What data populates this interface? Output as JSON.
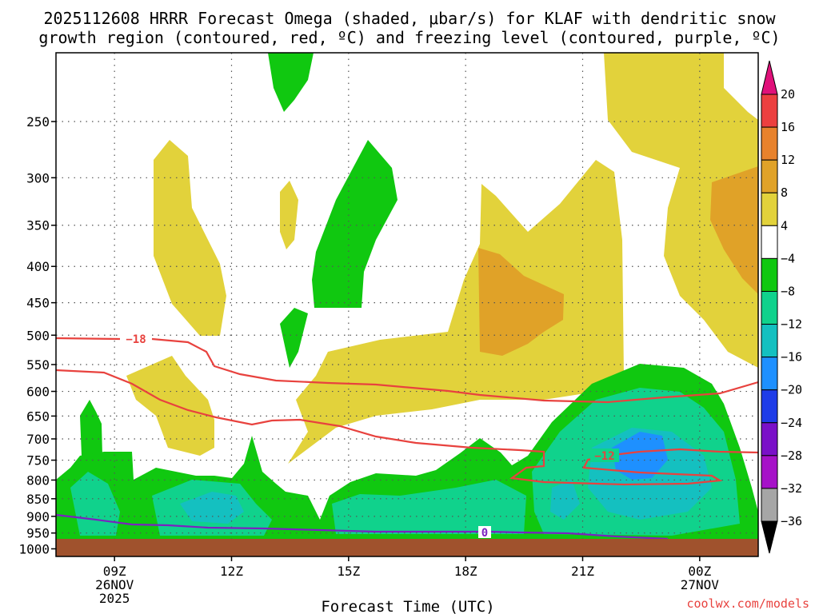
{
  "title": {
    "line1": "2025112608 HRRR Forecast Omega (shaded, μbar/s) for KLAF with dendritic snow",
    "line2": "growth region (contoured, red, ºC) and freezing level (contoured, purple, ºC)"
  },
  "credit": "coolwx.com/models",
  "chart_data": {
    "type": "time-height cross section (filled contours)",
    "x_axis": {
      "label": "Forecast Time (UTC)",
      "range_hours": [
        7.5,
        25.5
      ],
      "ticks": [
        {
          "hour": 9,
          "label": "09Z",
          "sub1": "26NOV",
          "sub2": "2025"
        },
        {
          "hour": 12,
          "label": "12Z",
          "sub1": "",
          "sub2": ""
        },
        {
          "hour": 15,
          "label": "15Z",
          "sub1": "",
          "sub2": ""
        },
        {
          "hour": 18,
          "label": "18Z",
          "sub1": "",
          "sub2": ""
        },
        {
          "hour": 21,
          "label": "21Z",
          "sub1": "",
          "sub2": ""
        },
        {
          "hour": 24,
          "label": "00Z",
          "sub1": "27NOV",
          "sub2": ""
        }
      ]
    },
    "y_axis": {
      "scale": "log-pressure",
      "range_hpa": [
        1025,
        200
      ],
      "ticks": [
        250,
        300,
        350,
        400,
        450,
        500,
        550,
        600,
        650,
        700,
        750,
        800,
        850,
        900,
        950,
        1000
      ]
    },
    "colorbar": {
      "labels": [
        "20",
        "16",
        "12",
        "8",
        "4",
        "−4",
        "−8",
        "−12",
        "−16",
        "−20",
        "−24",
        "−28",
        "−32",
        "−36"
      ],
      "colors": [
        "#ec3f3f",
        "#e8822c",
        "#e0a228",
        "#e2d23b",
        "#ffffff",
        "#10c810",
        "#10d28c",
        "#14c0c0",
        "#1e90ff",
        "#1e3ce8",
        "#7a10c8",
        "#a612c8",
        "#a6a6a6"
      ],
      "top_arrow_color": "#e0117a",
      "bottom_arrow_color": "#000000"
    },
    "contours": [
      {
        "label": "−18",
        "color": "#e8423e"
      },
      {
        "label": "−12",
        "color": "#e8423e"
      },
      {
        "label": "0",
        "color": "#7a22c0"
      }
    ],
    "ground_color": "#a0522d"
  }
}
